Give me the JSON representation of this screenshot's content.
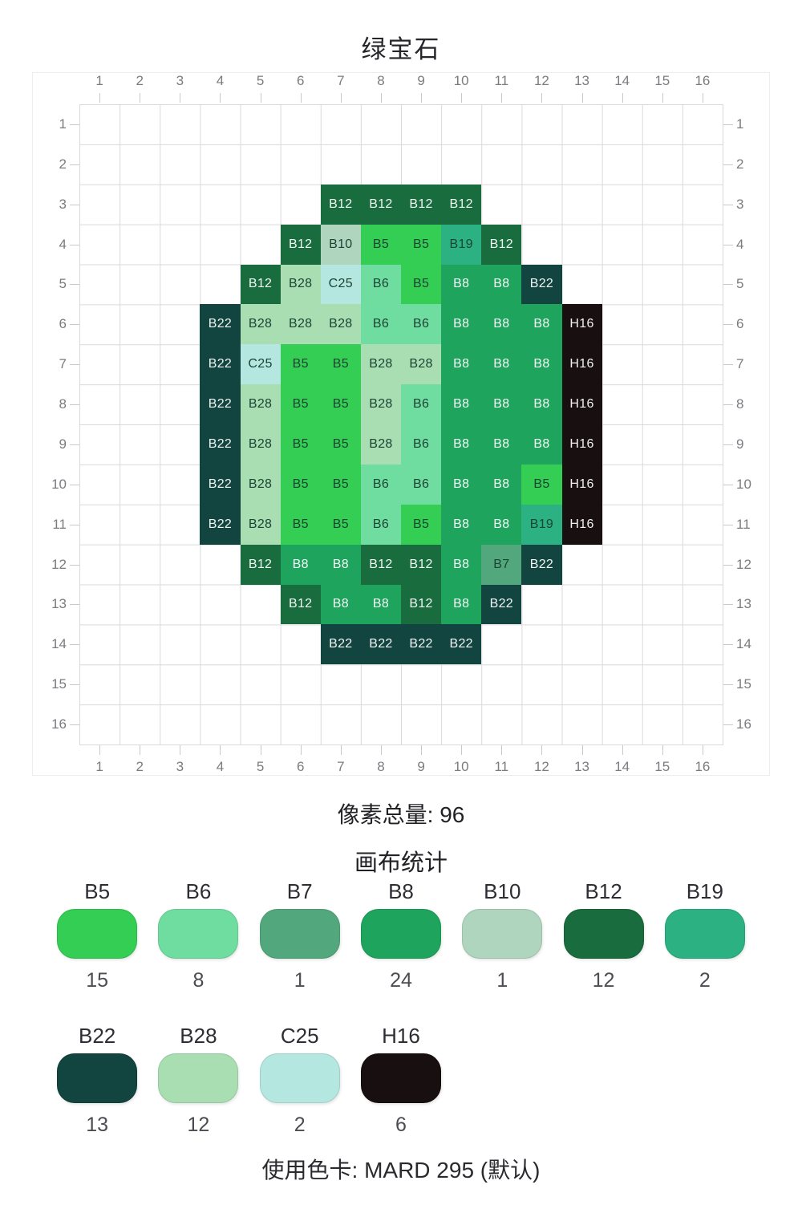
{
  "page": {
    "title": "绿宝石",
    "pixel_total": {
      "text": "像素总量: 96",
      "value": 96
    },
    "stats_title": "画布统计",
    "footer": {
      "text": "使用色卡: MARD 295 (默认)",
      "palette_card": "MARD 295"
    }
  },
  "grid": {
    "rows": 16,
    "cols": 16,
    "col_labels": [
      "1",
      "2",
      "3",
      "4",
      "5",
      "6",
      "7",
      "8",
      "9",
      "10",
      "11",
      "12",
      "13",
      "14",
      "15",
      "16"
    ],
    "row_labels": [
      "1",
      "2",
      "3",
      "4",
      "5",
      "6",
      "7",
      "8",
      "9",
      "10",
      "11",
      "12",
      "13",
      "14",
      "15",
      "16"
    ],
    "pixel_rows": [
      {
        "row": 3,
        "start": 7,
        "codes": [
          "B12",
          "B12",
          "B12",
          "B12"
        ]
      },
      {
        "row": 4,
        "start": 6,
        "codes": [
          "B12",
          "B10",
          "B5",
          "B5",
          "B19",
          "B12"
        ]
      },
      {
        "row": 5,
        "start": 5,
        "codes": [
          "B12",
          "B28",
          "C25",
          "B6",
          "B5",
          "B8",
          "B8",
          "B22"
        ]
      },
      {
        "row": 6,
        "start": 4,
        "codes": [
          "B22",
          "B28",
          "B28",
          "B28",
          "B6",
          "B6",
          "B8",
          "B8",
          "B8",
          "H16"
        ]
      },
      {
        "row": 7,
        "start": 4,
        "codes": [
          "B22",
          "C25",
          "B5",
          "B5",
          "B28",
          "B28",
          "B8",
          "B8",
          "B8",
          "H16"
        ]
      },
      {
        "row": 8,
        "start": 4,
        "codes": [
          "B22",
          "B28",
          "B5",
          "B5",
          "B28",
          "B6",
          "B8",
          "B8",
          "B8",
          "H16"
        ]
      },
      {
        "row": 9,
        "start": 4,
        "codes": [
          "B22",
          "B28",
          "B5",
          "B5",
          "B28",
          "B6",
          "B8",
          "B8",
          "B8",
          "H16"
        ]
      },
      {
        "row": 10,
        "start": 4,
        "codes": [
          "B22",
          "B28",
          "B5",
          "B5",
          "B6",
          "B6",
          "B8",
          "B8",
          "B5",
          "H16"
        ]
      },
      {
        "row": 11,
        "start": 4,
        "codes": [
          "B22",
          "B28",
          "B5",
          "B5",
          "B6",
          "B5",
          "B8",
          "B8",
          "B19",
          "H16"
        ]
      },
      {
        "row": 12,
        "start": 5,
        "codes": [
          "B12",
          "B8",
          "B8",
          "B12",
          "B12",
          "B8",
          "B7",
          "B22"
        ]
      },
      {
        "row": 13,
        "start": 6,
        "codes": [
          "B12",
          "B8",
          "B8",
          "B12",
          "B8",
          "B22"
        ]
      },
      {
        "row": 14,
        "start": 7,
        "codes": [
          "B22",
          "B22",
          "B22",
          "B22"
        ]
      }
    ]
  },
  "palette": {
    "B5": {
      "color": "#33CE53",
      "text_color": "dark"
    },
    "B6": {
      "color": "#6FDDA0",
      "text_color": "dark"
    },
    "B7": {
      "color": "#52A87C",
      "text_color": "dark"
    },
    "B8": {
      "color": "#1FA45D",
      "text_color": "light"
    },
    "B10": {
      "color": "#AFD5BE",
      "text_color": "dark"
    },
    "B12": {
      "color": "#186C3D",
      "text_color": "light"
    },
    "B19": {
      "color": "#2CB183",
      "text_color": "dark"
    },
    "B22": {
      "color": "#12453F",
      "text_color": "light"
    },
    "B28": {
      "color": "#A8DEB2",
      "text_color": "dark"
    },
    "C25": {
      "color": "#B4E7E0",
      "text_color": "dark"
    },
    "H16": {
      "color": "#170F10",
      "text_color": "light"
    }
  },
  "legend": [
    {
      "code": "B5",
      "count": 15
    },
    {
      "code": "B6",
      "count": 8
    },
    {
      "code": "B7",
      "count": 1
    },
    {
      "code": "B8",
      "count": 24
    },
    {
      "code": "B10",
      "count": 1
    },
    {
      "code": "B12",
      "count": 12
    },
    {
      "code": "B19",
      "count": 2
    },
    {
      "code": "B22",
      "count": 13
    },
    {
      "code": "B28",
      "count": 12
    },
    {
      "code": "C25",
      "count": 2
    },
    {
      "code": "H16",
      "count": 6
    }
  ]
}
